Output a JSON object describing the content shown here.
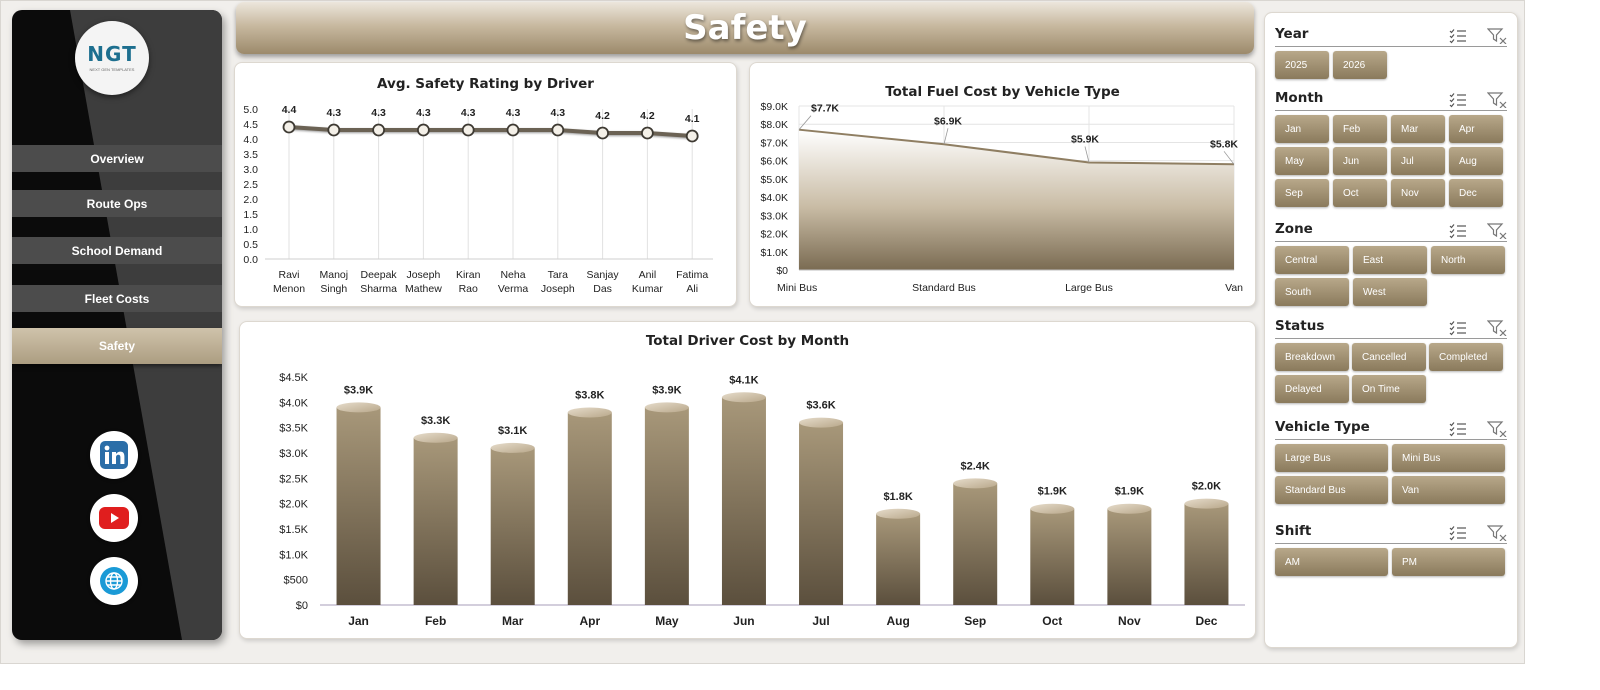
{
  "header": {
    "title": "Safety"
  },
  "logo": {
    "text": "NGT",
    "sub": "NEXT GEN TEMPLATES"
  },
  "sidebar": {
    "items": [
      {
        "label": "Overview"
      },
      {
        "label": "Route Ops"
      },
      {
        "label": "School Demand"
      },
      {
        "label": "Fleet Costs"
      },
      {
        "label": "Safety"
      }
    ],
    "social": [
      "linkedin-icon",
      "youtube-icon",
      "globe-icon"
    ]
  },
  "colors": {
    "accent": "#9c8a6b",
    "accent_light": "#cfc3ab",
    "bar_dark": "#5e5240",
    "sidebar": "#0b0b0b"
  },
  "chart_data": [
    {
      "type": "line",
      "title": "Avg. Safety Rating by Driver",
      "categories": [
        "Ravi Menon",
        "Manoj Singh",
        "Deepak Sharma",
        "Joseph Mathew",
        "Kiran Rao",
        "Neha Verma",
        "Tara Joseph",
        "Sanjay Das",
        "Anil Kumar",
        "Fatima Ali"
      ],
      "values": [
        4.4,
        4.3,
        4.3,
        4.3,
        4.3,
        4.3,
        4.3,
        4.2,
        4.2,
        4.1
      ],
      "data_labels": [
        "4.4",
        "4.3",
        "4.3",
        "4.3",
        "4.3",
        "4.3",
        "4.3",
        "4.2",
        "4.2",
        "4.1"
      ],
      "yticks": [
        "0.0",
        "0.5",
        "1.0",
        "1.5",
        "2.0",
        "2.5",
        "3.0",
        "3.5",
        "4.0",
        "4.5",
        "5.0"
      ],
      "ylim": [
        0,
        5
      ],
      "grid": "vertical"
    },
    {
      "type": "area",
      "title": "Total Fuel Cost by Vehicle Type",
      "categories": [
        "Mini Bus",
        "Standard Bus",
        "Large Bus",
        "Van"
      ],
      "values": [
        7700,
        6900,
        5900,
        5800
      ],
      "data_labels": [
        "$7.7K",
        "$6.9K",
        "$5.9K",
        "$5.8K"
      ],
      "yticks": [
        "$0",
        "$1.0K",
        "$2.0K",
        "$3.0K",
        "$4.0K",
        "$5.0K",
        "$6.0K",
        "$7.0K",
        "$8.0K",
        "$9.0K"
      ],
      "ylim": [
        0,
        9000
      ],
      "grid": "both"
    },
    {
      "type": "bar",
      "title": "Total Driver Cost by Month",
      "categories": [
        "Jan",
        "Feb",
        "Mar",
        "Apr",
        "May",
        "Jun",
        "Jul",
        "Aug",
        "Sep",
        "Oct",
        "Nov",
        "Dec"
      ],
      "values": [
        3900,
        3300,
        3100,
        3800,
        3900,
        4100,
        3600,
        1800,
        2400,
        1900,
        1900,
        2000
      ],
      "data_labels": [
        "$3.9K",
        "$3.3K",
        "$3.1K",
        "$3.8K",
        "$3.9K",
        "$4.1K",
        "$3.6K",
        "$1.8K",
        "$2.4K",
        "$1.9K",
        "$1.9K",
        "$2.0K"
      ],
      "yticks": [
        "$0",
        "$500",
        "$1.0K",
        "$1.5K",
        "$2.0K",
        "$2.5K",
        "$3.0K",
        "$3.5K",
        "$4.0K",
        "$4.5K"
      ],
      "ylim": [
        0,
        4500
      ],
      "grid": "none"
    }
  ],
  "slicers": [
    {
      "title": "Year",
      "options": [
        "2025",
        "2026"
      ]
    },
    {
      "title": "Month",
      "options": [
        "Jan",
        "Feb",
        "Mar",
        "Apr",
        "May",
        "Jun",
        "Jul",
        "Aug",
        "Sep",
        "Oct",
        "Nov",
        "Dec"
      ]
    },
    {
      "title": "Zone",
      "options": [
        "Central",
        "East",
        "North",
        "South",
        "West"
      ]
    },
    {
      "title": "Status",
      "options": [
        "Breakdown",
        "Cancelled",
        "Completed",
        "Delayed",
        "On Time"
      ]
    },
    {
      "title": "Vehicle Type",
      "options": [
        "Large Bus",
        "Mini Bus",
        "Standard Bus",
        "Van"
      ]
    },
    {
      "title": "Shift",
      "options": [
        "AM",
        "PM"
      ]
    }
  ]
}
